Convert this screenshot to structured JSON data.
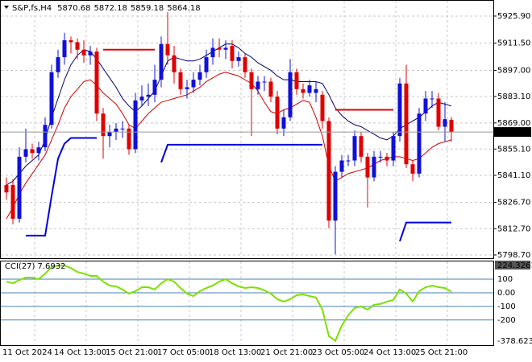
{
  "chart_data": [
    {
      "type": "candlestick",
      "symbol": "S&P,fs,H4",
      "categories": [
        "11 Oct 2024",
        null,
        null,
        null,
        null,
        null,
        null,
        null,
        "14 Oct 13:00",
        null,
        null,
        null,
        null,
        null,
        null,
        null,
        "15 Oct 21:00",
        null,
        null,
        null,
        null,
        null,
        null,
        null,
        "17 Oct 05:00",
        null,
        null,
        null,
        null,
        null,
        null,
        null,
        "18 Oct 13:00",
        null,
        null,
        null,
        null,
        null,
        null,
        null,
        "21 Oct 21:00",
        null,
        null,
        null,
        null,
        null,
        null,
        null,
        "23 Oct 05:00",
        null,
        null,
        null,
        null,
        null,
        null,
        null,
        "24 Oct 13:00",
        null,
        null,
        null,
        null,
        null,
        null,
        null,
        "25 Oct 21:00",
        null,
        null,
        null,
        null,
        null
      ],
      "ohlc": [
        [
          5836,
          5840,
          5828,
          5832
        ],
        [
          5836,
          5839,
          5815,
          5818
        ],
        [
          5818,
          5856,
          5816,
          5851
        ],
        [
          5851,
          5866,
          5848,
          5855
        ],
        [
          5855,
          5858,
          5850,
          5853
        ],
        [
          5853,
          5859,
          5849,
          5856
        ],
        [
          5856,
          5872,
          5854,
          5868
        ],
        [
          5868,
          5900,
          5866,
          5896
        ],
        [
          5896,
          5908,
          5893,
          5904
        ],
        [
          5904,
          5917,
          5900,
          5913
        ],
        [
          5913,
          5915,
          5906,
          5912
        ],
        [
          5912,
          5914,
          5903,
          5908
        ],
        [
          5908,
          5913,
          5901,
          5905
        ],
        [
          5905,
          5910,
          5900,
          5907
        ],
        [
          5907,
          5909,
          5870,
          5874
        ],
        [
          5874,
          5877,
          5850,
          5862
        ],
        [
          5862,
          5868,
          5856,
          5864
        ],
        [
          5864,
          5869,
          5860,
          5866
        ],
        [
          5866,
          5870,
          5861,
          5866
        ],
        [
          5866,
          5868,
          5852,
          5855
        ],
        [
          5855,
          5885,
          5853,
          5881
        ],
        [
          5881,
          5889,
          5878,
          5883
        ],
        [
          5883,
          5890,
          5878,
          5884
        ],
        [
          5884,
          5900,
          5880,
          5892
        ],
        [
          5892,
          5915,
          5888,
          5911
        ],
        [
          5911,
          5928,
          5900,
          5905
        ],
        [
          5905,
          5910,
          5890,
          5896
        ],
        [
          5896,
          5898,
          5884,
          5887
        ],
        [
          5887,
          5892,
          5882,
          5888
        ],
        [
          5888,
          5896,
          5885,
          5892
        ],
        [
          5892,
          5900,
          5889,
          5896
        ],
        [
          5896,
          5908,
          5893,
          5904
        ],
        [
          5904,
          5914,
          5900,
          5909
        ],
        [
          5909,
          5914,
          5904,
          5908
        ],
        [
          5908,
          5913,
          5903,
          5909
        ],
        [
          5910,
          5913,
          5898,
          5902
        ],
        [
          5902,
          5907,
          5899,
          5904
        ],
        [
          5904,
          5906,
          5893,
          5896
        ],
        [
          5896,
          5898,
          5862,
          5887
        ],
        [
          5887,
          5894,
          5884,
          5891
        ],
        [
          5891,
          5894,
          5886,
          5891
        ],
        [
          5891,
          5893,
          5880,
          5883
        ],
        [
          5883,
          5886,
          5863,
          5866
        ],
        [
          5866,
          5876,
          5862,
          5872
        ],
        [
          5872,
          5903,
          5870,
          5896
        ],
        [
          5896,
          5898,
          5884,
          5887
        ],
        [
          5887,
          5890,
          5882,
          5885
        ],
        [
          5885,
          5892,
          5883,
          5889
        ],
        [
          5885,
          5891,
          5880,
          5887
        ],
        [
          5884,
          5886,
          5866,
          5870
        ],
        [
          5870,
          5872,
          5813,
          5817
        ],
        [
          5817,
          5846,
          5799,
          5843
        ],
        [
          5843,
          5852,
          5840,
          5849
        ],
        [
          5849,
          5852,
          5846,
          5849
        ],
        [
          5849,
          5865,
          5846,
          5862
        ],
        [
          5862,
          5864,
          5848,
          5851
        ],
        [
          5851,
          5853,
          5824,
          5840
        ],
        [
          5840,
          5854,
          5838,
          5851
        ],
        [
          5851,
          5854,
          5848,
          5851
        ],
        [
          5851,
          5853,
          5846,
          5849
        ],
        [
          5849,
          5864,
          5846,
          5862
        ],
        [
          5862,
          5893,
          5859,
          5890
        ],
        [
          5890,
          5900,
          5845,
          5847
        ],
        [
          5847,
          5849,
          5838,
          5842
        ],
        [
          5842,
          5877,
          5840,
          5874
        ],
        [
          5874,
          5886,
          5870,
          5882
        ],
        [
          5882,
          5886,
          5877,
          5882
        ],
        [
          5882,
          5885,
          5865,
          5867
        ],
        [
          5867,
          5880,
          5859,
          5871
        ],
        [
          5870.68,
          5872.18,
          5859.18,
          5864.18
        ]
      ],
      "up_color": "#1010d8",
      "down_color": "#e00000",
      "lines": [
        {
          "color": "#00006e",
          "width": 1,
          "values": [
            5836,
            5838,
            5842,
            5846,
            5849,
            5852,
            5860,
            5872,
            5882,
            5892,
            5900,
            5905,
            5908,
            5907,
            5903,
            5898,
            5893,
            5888,
            5882,
            5878,
            5875,
            5878,
            5882,
            5886,
            5894,
            5902,
            5904,
            5903,
            5902,
            5902,
            5903,
            5905,
            5907,
            5909,
            5911,
            5911,
            5909,
            5906,
            5904,
            5901,
            5899,
            5897,
            5894,
            5892,
            5892,
            5891,
            5891,
            5891,
            5891,
            5890,
            5884,
            5877,
            5873,
            5870,
            5868,
            5867,
            5865,
            5863,
            5861,
            5860,
            5862,
            5866,
            5868,
            5870,
            5872,
            5875,
            5878,
            5880,
            5879,
            5878
          ]
        },
        {
          "color": "#d00000",
          "width": 1,
          "values": [
            5818,
            5824,
            5831,
            5837,
            5842,
            5847,
            5852,
            5860,
            5868,
            5877,
            5883,
            5887,
            5891,
            5892,
            5889,
            5885,
            5882,
            5879,
            5874,
            5868,
            5866,
            5870,
            5874,
            5877,
            5880,
            5881,
            5882,
            5883,
            5884,
            5886,
            5888,
            5891,
            5893,
            5895,
            5896,
            5895,
            5894,
            5892,
            5890,
            5886,
            5880,
            5875,
            5874,
            5876,
            5877,
            5879,
            5881,
            5880,
            5872,
            5862,
            5846,
            5838,
            5840,
            5842,
            5843,
            5844,
            5845,
            5847,
            5849,
            5850,
            5851,
            5851,
            5850,
            5849,
            5850,
            5853,
            5856,
            5858,
            5859,
            5860
          ]
        },
        {
          "color": "#e00000",
          "width": 2,
          "values": [
            null,
            null,
            null,
            null,
            null,
            null,
            null,
            null,
            null,
            null,
            null,
            null,
            null,
            null,
            null,
            5908,
            5908,
            5908,
            5908,
            5908,
            5908,
            5908,
            5908,
            5908,
            null,
            null,
            null,
            null,
            null,
            null,
            null,
            null,
            null,
            null,
            null,
            null,
            null,
            null,
            null,
            null,
            null,
            null,
            null,
            null,
            null,
            null,
            null,
            null,
            null,
            null,
            null,
            5876,
            5876,
            5876,
            5876,
            5876,
            5876,
            5876,
            5876,
            5876,
            5876,
            null,
            null,
            null,
            null,
            null,
            null,
            null,
            null,
            null
          ]
        },
        {
          "color": "#0000e0",
          "width": 2,
          "values": [
            null,
            null,
            null,
            5809,
            5809,
            5809,
            5809,
            5830,
            5850,
            5858,
            5861,
            5861,
            5861,
            5861,
            5861,
            null,
            null,
            null,
            null,
            null,
            null,
            null,
            null,
            null,
            5848,
            5857.4,
            5857.4,
            5857.4,
            5857.4,
            5857.4,
            5857.4,
            5857.4,
            5857.4,
            5857.4,
            5857.4,
            5857.4,
            5857.4,
            5857.4,
            5857.4,
            5857.4,
            5857.4,
            5857.4,
            5857.4,
            5857.4,
            5857.4,
            5857.4,
            5857.4,
            5857.4,
            5857.4,
            5857.4,
            null,
            null,
            null,
            null,
            null,
            null,
            null,
            null,
            null,
            null,
            null,
            5806,
            5816,
            5816,
            5816,
            5816,
            5816,
            5816,
            5816,
            5816
          ]
        }
      ],
      "ylim": [
        5797.4,
        5933.6
      ],
      "yticks": [
        {
          "value": 5925.9,
          "label": "5925.90"
        },
        {
          "value": 5911.5,
          "label": "5911.50"
        },
        {
          "value": 5897,
          "label": "5897.00"
        },
        {
          "value": 5883.1,
          "label": "5883.10"
        },
        {
          "value": 5869,
          "label": "5869.00"
        },
        {
          "value": 5855.1,
          "label": "5855.10"
        },
        {
          "value": 5841.1,
          "label": "5841.10"
        },
        {
          "value": 5826.7,
          "label": "5826.70"
        },
        {
          "value": 5812.7,
          "label": "5812.70"
        },
        {
          "value": 5798.7,
          "label": "5798.70"
        }
      ],
      "grid": true
    },
    {
      "type": "line",
      "series": [
        {
          "name": "CCI(27)",
          "color": "#7ce000",
          "values": [
            82,
            70,
            94,
            112,
            112,
            100,
            141,
            188,
            200,
            200,
            182,
            153,
            141,
            124,
            124,
            82,
            53,
            47,
            24,
            -6,
            12,
            41,
            41,
            24,
            70,
            100,
            82,
            35,
            -6,
            -24,
            12,
            35,
            53,
            82,
            100,
            70,
            47,
            35,
            41,
            35,
            18,
            -6,
            -47,
            -65,
            -47,
            -18,
            -12,
            -24,
            -35,
            -124,
            -318,
            -353,
            -241,
            -165,
            -112,
            -100,
            -124,
            -88,
            -82,
            -65,
            -53,
            24,
            -6,
            -65,
            12,
            41,
            53,
            41,
            35,
            7.6932
          ]
        }
      ],
      "ylim": [
        -378.6235,
        224.3261
      ],
      "yticks": [
        224.3261,
        100,
        {
          "value": 0,
          "label": "0.00"
        },
        -100,
        -200,
        -378.6235
      ],
      "level_color": "#4682b4"
    }
  ]
}
